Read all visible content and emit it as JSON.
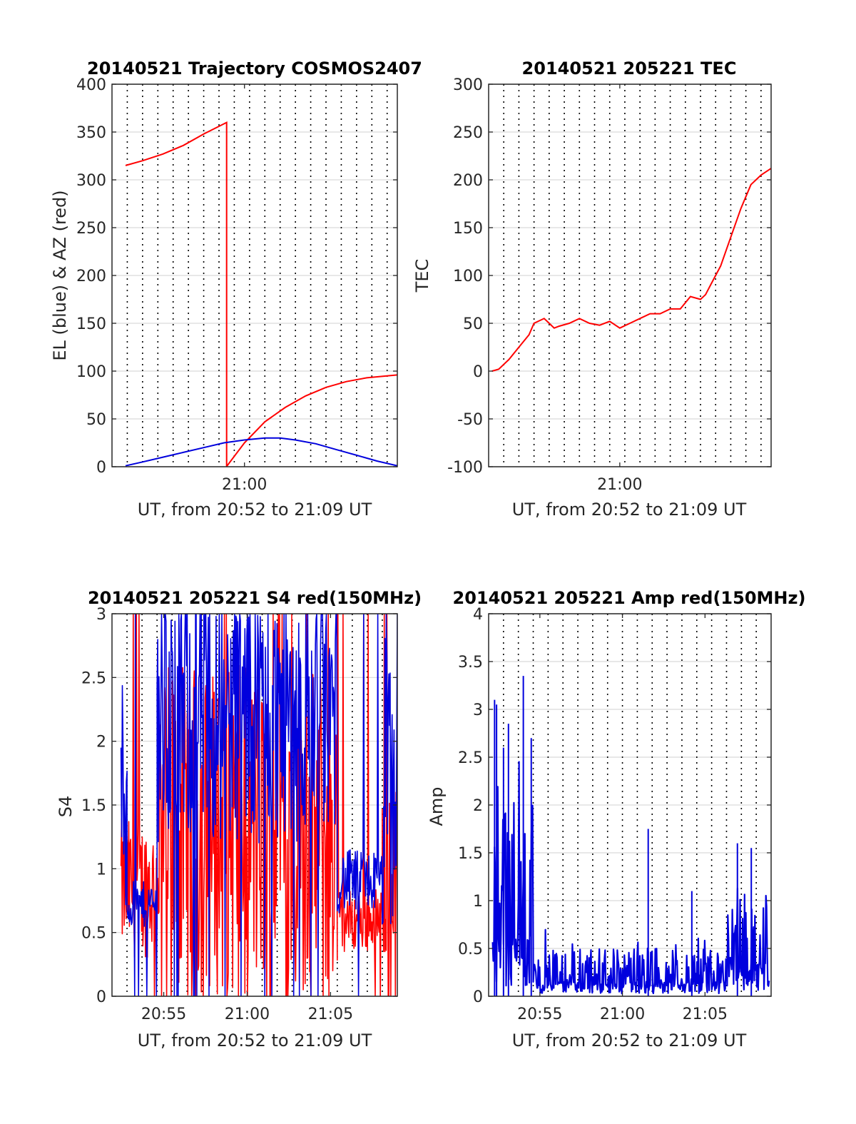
{
  "colors": {
    "red": "#ff0000",
    "blue": "#0000dd",
    "grid": "#d9d9d9",
    "dotted": "#000000",
    "axis": "#262626"
  },
  "chart_data": [
    {
      "id": "trajectory",
      "type": "line",
      "title": "20140521 Trajectory COSMOS2407",
      "xlabel": "UT, from 20:52 to 21:09 UT",
      "ylabel": "EL (blue) & AZ (red)",
      "xlim": [
        20.87,
        21.15
      ],
      "ylim": [
        0,
        400
      ],
      "yticks": [
        0,
        50,
        100,
        150,
        200,
        250,
        300,
        350,
        400
      ],
      "xticks": [
        {
          "value": 21.0,
          "label": "21:00"
        }
      ],
      "dotted_x": [
        20.885,
        20.9,
        20.915,
        20.93,
        20.945,
        20.96,
        20.975,
        20.99,
        21.005,
        21.02,
        21.035,
        21.05,
        21.065,
        21.08,
        21.095,
        21.11,
        21.125,
        21.14
      ],
      "grid": true,
      "series": [
        {
          "color": "red",
          "x": [
            20.8833,
            20.9,
            20.92,
            20.94,
            20.96,
            20.975,
            20.9825,
            20.98251,
            20.983,
            21.0,
            21.02,
            21.04,
            21.06,
            21.08,
            21.1,
            21.12,
            21.15
          ],
          "y": [
            315,
            320,
            327,
            336,
            348,
            356,
            360,
            0,
            1,
            25,
            47,
            62,
            74,
            83,
            89,
            93,
            96
          ]
        },
        {
          "color": "blue",
          "x": [
            20.8833,
            20.9,
            20.92,
            20.94,
            20.96,
            20.98,
            21.0,
            21.02,
            21.035,
            21.05,
            21.07,
            21.09,
            21.11,
            21.13,
            21.15
          ],
          "y": [
            1,
            5,
            10,
            15,
            20,
            25,
            28,
            30,
            30,
            28,
            24,
            18,
            12,
            6,
            1
          ]
        }
      ]
    },
    {
      "id": "tec",
      "type": "line",
      "title": "20140521 205221 TEC",
      "xlabel": "UT, from 20:52 to 21:09 UT",
      "ylabel": "TEC",
      "xlim": [
        20.87,
        21.15
      ],
      "ylim": [
        -100,
        300
      ],
      "yticks": [
        -100,
        -50,
        0,
        50,
        100,
        150,
        200,
        250,
        300
      ],
      "xticks": [
        {
          "value": 21.0,
          "label": "21:00"
        }
      ],
      "dotted_x": [
        20.885,
        20.9,
        20.915,
        20.93,
        20.945,
        20.96,
        20.975,
        20.99,
        21.005,
        21.02,
        21.035,
        21.05,
        21.065,
        21.08,
        21.095,
        21.11,
        21.125,
        21.14
      ],
      "grid": true,
      "series": [
        {
          "color": "red",
          "x": [
            20.8733,
            20.88,
            20.89,
            20.9,
            20.91,
            20.915,
            20.925,
            20.93,
            20.935,
            20.94,
            20.95,
            20.96,
            20.97,
            20.98,
            20.99,
            21.0,
            21.01,
            21.02,
            21.03,
            21.04,
            21.05,
            21.06,
            21.07,
            21.08,
            21.085,
            21.09,
            21.1,
            21.11,
            21.12,
            21.13,
            21.14,
            21.15
          ],
          "y": [
            0,
            2,
            12,
            25,
            38,
            50,
            55,
            50,
            45,
            47,
            50,
            55,
            50,
            48,
            52,
            45,
            50,
            55,
            60,
            60,
            65,
            65,
            78,
            75,
            80,
            90,
            110,
            140,
            170,
            195,
            205,
            212
          ]
        }
      ]
    },
    {
      "id": "s4",
      "type": "line",
      "title": "20140521 205221 S4 red(150MHz)",
      "xlabel": "UT, from 20:52 to 21:09 UT",
      "ylabel": "S4",
      "xlim": [
        20.865,
        21.15
      ],
      "ylim": [
        0,
        3
      ],
      "yticks": [
        0,
        0.5,
        1,
        1.5,
        2,
        2.5,
        3
      ],
      "xticks": [
        {
          "value": 20.9167,
          "label": "20:55"
        },
        {
          "value": 21.0,
          "label": "21:00"
        },
        {
          "value": 21.0833,
          "label": "21:05"
        }
      ],
      "dotted_x": [
        20.88,
        20.895,
        20.91,
        20.925,
        20.94,
        20.955,
        20.97,
        20.985,
        21.0,
        21.015,
        21.03,
        21.045,
        21.06,
        21.075,
        21.09,
        21.105,
        21.12,
        21.135
      ],
      "grid": true,
      "noise_segments": [
        {
          "series": "blue",
          "from": 20.874,
          "to": 20.88,
          "base": 1.5,
          "amp": 1.0
        },
        {
          "series": "blue",
          "from": 20.88,
          "to": 20.91,
          "base": 0.72,
          "amp": 0.18
        },
        {
          "series": "blue",
          "from": 20.91,
          "to": 20.91,
          "base": 0.9,
          "amp": 0.6
        },
        {
          "series": "blue",
          "from": 20.91,
          "to": 21.09,
          "base": 2.2,
          "amp": 1.0
        },
        {
          "series": "blue",
          "from": 21.09,
          "to": 21.135,
          "base": 0.9,
          "amp": 0.25
        },
        {
          "series": "blue",
          "from": 21.135,
          "to": 21.15,
          "base": 1.6,
          "amp": 1.3
        },
        {
          "series": "red",
          "from": 20.874,
          "to": 20.91,
          "base": 0.85,
          "amp": 0.55
        },
        {
          "series": "red",
          "from": 20.91,
          "to": 21.09,
          "base": 1.3,
          "amp": 1.3
        },
        {
          "series": "red",
          "from": 21.09,
          "to": 21.135,
          "base": 0.6,
          "amp": 0.25
        },
        {
          "series": "red",
          "from": 21.135,
          "to": 21.15,
          "base": 1.0,
          "amp": 0.7
        }
      ]
    },
    {
      "id": "amp",
      "type": "line",
      "title": "20140521 205221 Amp red(150MHz)",
      "xlabel": "UT, from 20:52 to 21:09 UT",
      "ylabel": "Amp",
      "xlim": [
        20.865,
        21.15
      ],
      "ylim": [
        0,
        4
      ],
      "yticks": [
        0,
        0.5,
        1,
        1.5,
        2,
        2.5,
        3,
        3.5,
        4
      ],
      "xticks": [
        {
          "value": 20.9167,
          "label": "20:55"
        },
        {
          "value": 21.0,
          "label": "21:00"
        },
        {
          "value": 21.0833,
          "label": "21:05"
        }
      ],
      "dotted_x": [
        20.88,
        20.895,
        20.91,
        20.925,
        20.94,
        20.955,
        20.97,
        20.985,
        21.0,
        21.015,
        21.03,
        21.045,
        21.06,
        21.075,
        21.09,
        21.105,
        21.12,
        21.135
      ],
      "grid": true,
      "noise_segments": [
        {
          "series": "blue",
          "from": 20.869,
          "to": 20.91,
          "base": 1.2,
          "amp": 1.6
        },
        {
          "series": "blue",
          "from": 20.91,
          "to": 21.105,
          "base": 0.3,
          "amp": 0.35
        },
        {
          "series": "blue",
          "from": 21.105,
          "to": 21.148,
          "base": 0.7,
          "amp": 0.6
        }
      ],
      "spikes": [
        {
          "x": 20.871,
          "y": 3.1
        },
        {
          "x": 20.873,
          "y": 3.05
        },
        {
          "x": 20.88,
          "y": 2.6
        },
        {
          "x": 20.885,
          "y": 2.85
        },
        {
          "x": 20.9,
          "y": 3.35
        },
        {
          "x": 20.908,
          "y": 2.7
        },
        {
          "x": 21.026,
          "y": 1.75
        },
        {
          "x": 21.07,
          "y": 1.1
        },
        {
          "x": 21.116,
          "y": 1.6
        },
        {
          "x": 21.13,
          "y": 1.55
        }
      ]
    }
  ]
}
